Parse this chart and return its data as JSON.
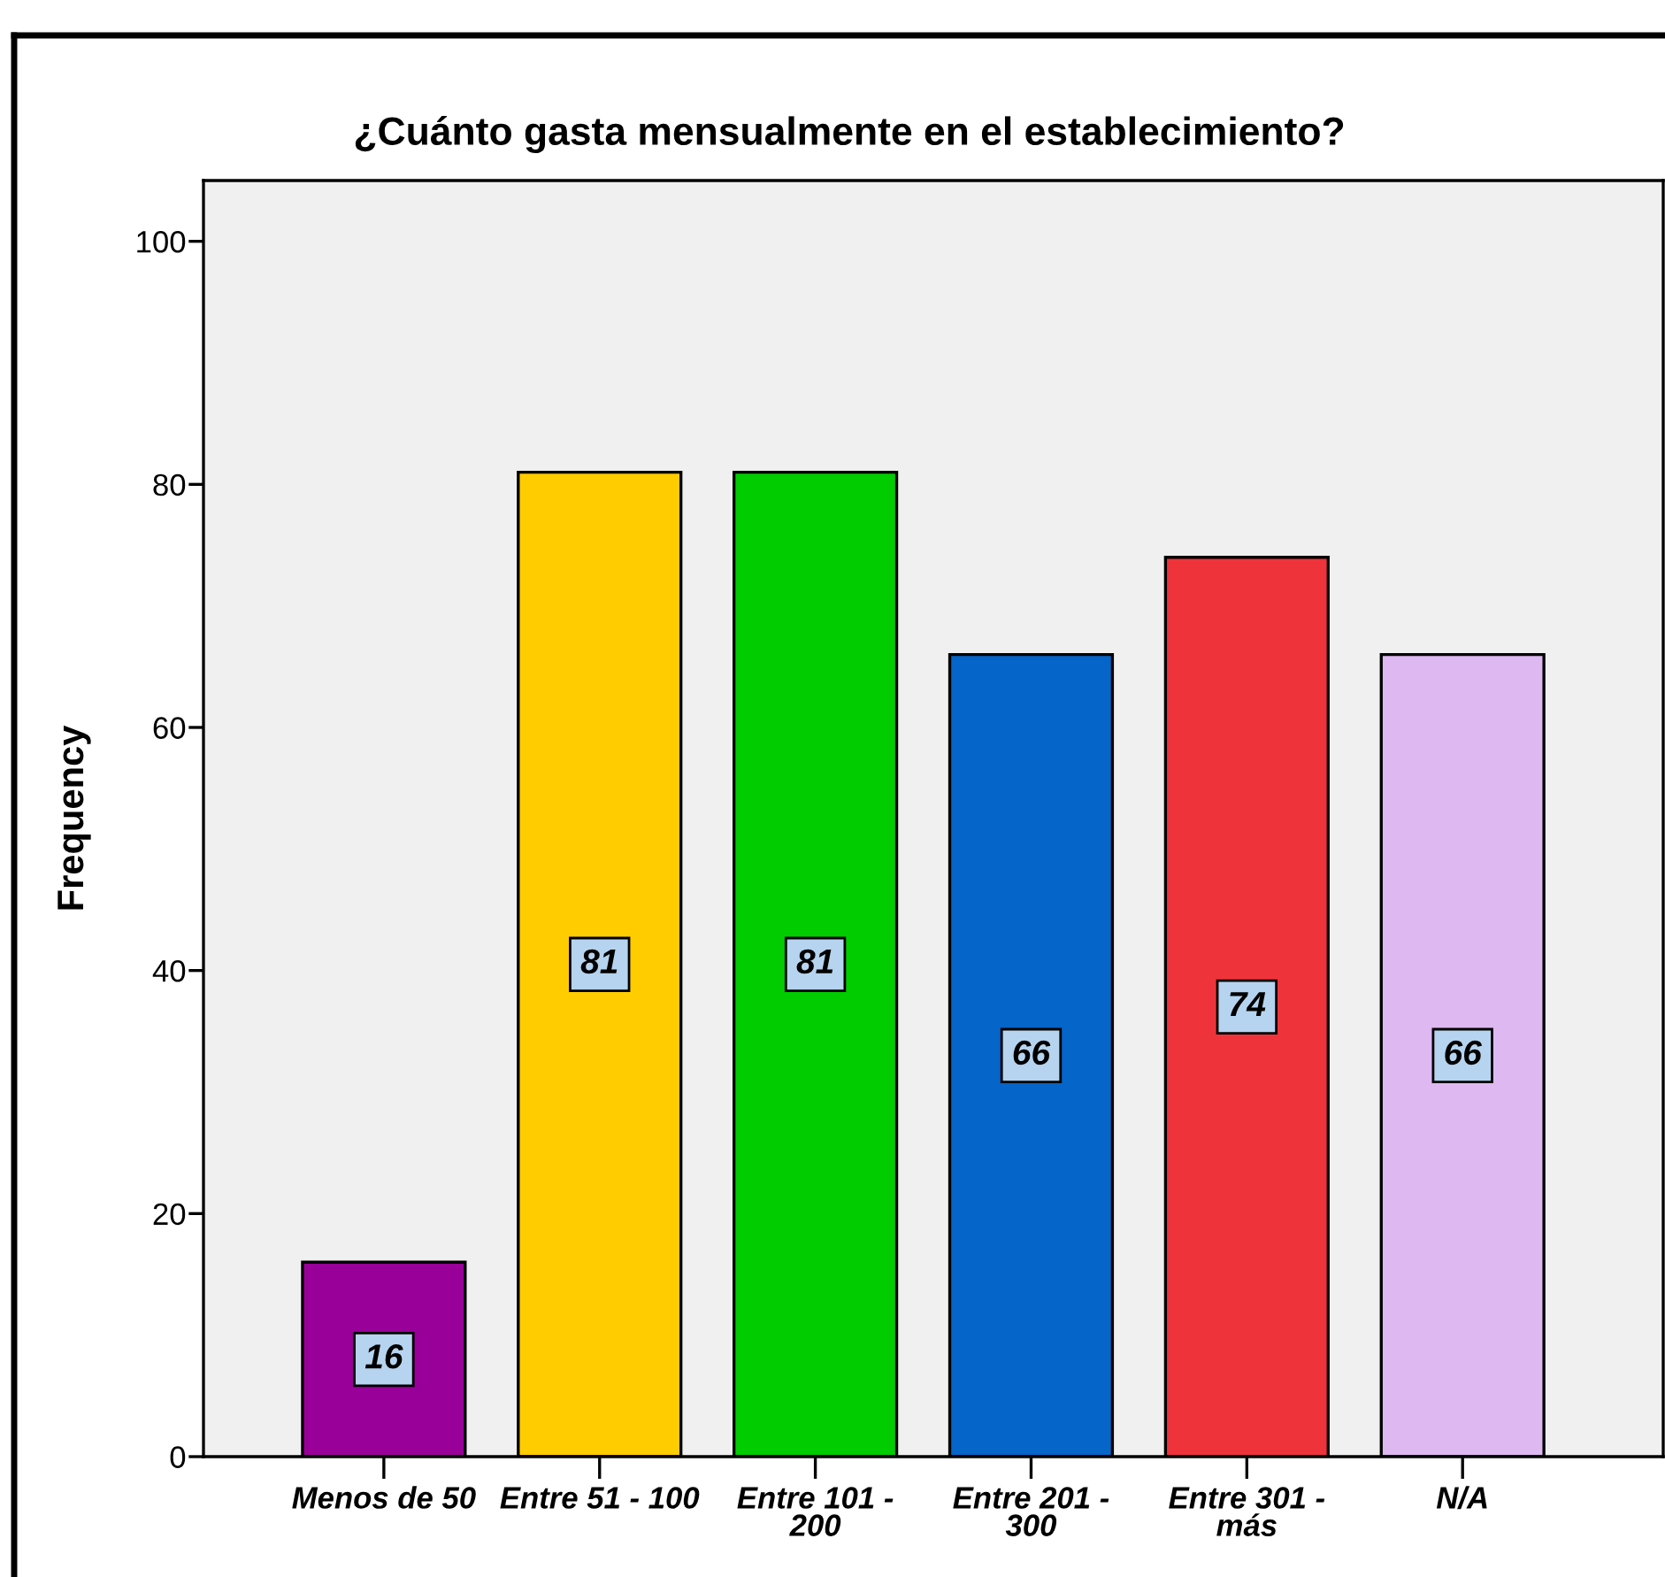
{
  "chart_data": {
    "type": "bar",
    "title": "¿Cuánto gasta mensualmente en el establecimiento?",
    "ylabel": "Frequency",
    "categories": [
      "Menos de 50",
      "Entre 51 - 100",
      "Entre 101 -\n200",
      "Entre 201 -\n300",
      "Entre 301 -\nmás",
      "N/A"
    ],
    "values": [
      16,
      81,
      81,
      66,
      74,
      66
    ],
    "colors": [
      "#990099",
      "#ffcc00",
      "#00cc00",
      "#0565c8",
      "#ef333a",
      "#deb8f0"
    ],
    "ylim": [
      0,
      105
    ],
    "yticks": [
      0,
      20,
      40,
      60,
      80,
      100
    ],
    "data_labels": true,
    "grid": false
  }
}
